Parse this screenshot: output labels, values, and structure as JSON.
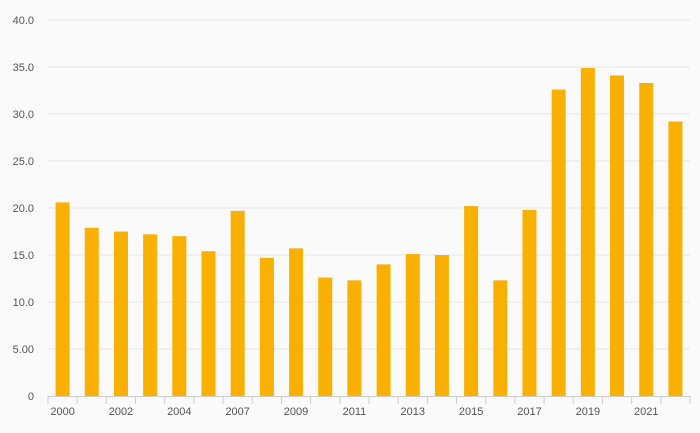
{
  "colors": {
    "background": "#fafafa",
    "bar": "#f9b000",
    "grid": "#e6e6e6",
    "axis": "#cccccc",
    "text": "#555555"
  },
  "chart_data": {
    "type": "bar",
    "title": "",
    "xlabel": "",
    "ylabel": "",
    "ylim": [
      0,
      40
    ],
    "grid": true,
    "y_tick_labels": [
      "0",
      "5.00",
      "10.0",
      "15.0",
      "20.0",
      "25.0",
      "30.0",
      "35.0",
      "40.0"
    ],
    "x_tick_labels": [
      "2000",
      "2002",
      "2004",
      "2007",
      "2009",
      "2011",
      "2013",
      "2015",
      "2017",
      "2019",
      "2021"
    ],
    "categories": [
      "2000",
      "2001",
      "2002",
      "2003",
      "2004",
      "2005",
      "2007",
      "2008",
      "2009",
      "2010",
      "2011",
      "2012",
      "2013",
      "2014",
      "2015",
      "2016",
      "2017",
      "2018",
      "2019",
      "2020",
      "2021",
      "2022"
    ],
    "values": [
      20.6,
      17.9,
      17.5,
      17.2,
      17.0,
      15.4,
      19.7,
      14.7,
      15.7,
      12.6,
      12.3,
      14.0,
      15.1,
      15.0,
      20.2,
      12.3,
      19.8,
      32.6,
      34.9,
      34.1,
      33.3,
      29.2
    ]
  }
}
